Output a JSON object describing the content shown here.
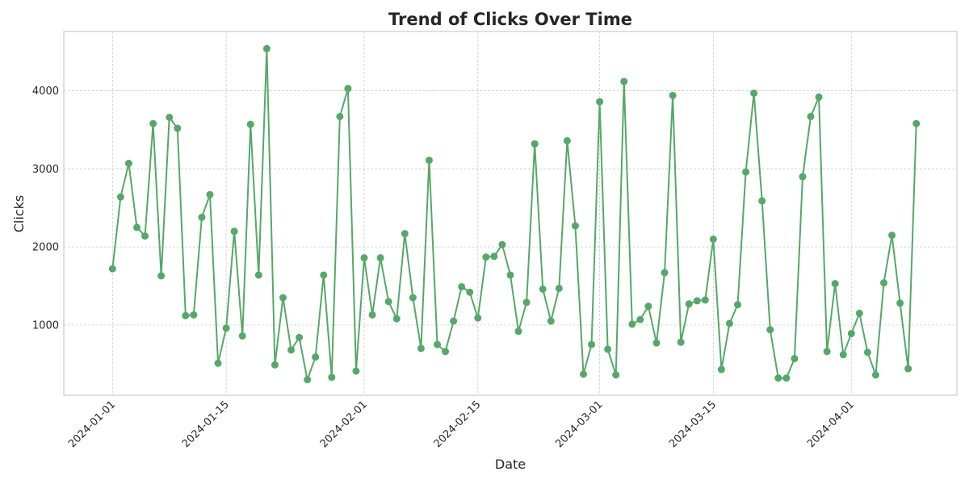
{
  "chart_data": {
    "type": "line",
    "title": "Trend of Clicks Over Time",
    "xlabel": "Date",
    "ylabel": "Clicks",
    "x_start": "2024-01-01",
    "x_end": "2024-04-08",
    "xlim": [
      "2023-12-26",
      "2024-04-14"
    ],
    "ylim": [
      100,
      4760
    ],
    "x_ticks": [
      "2024-01-01",
      "2024-01-15",
      "2024-02-01",
      "2024-02-15",
      "2024-03-01",
      "2024-03-15",
      "2024-04-01"
    ],
    "y_ticks": [
      1000,
      2000,
      3000,
      4000
    ],
    "grid": true,
    "legend": "none",
    "colors": {
      "line": "#55a868",
      "grid": "#cccccc",
      "frame": "#cccccc",
      "text": "#262626"
    },
    "series": [
      {
        "values": [
          1720,
          2640,
          3070,
          2250,
          2140,
          3580,
          1630,
          3660,
          3520,
          1120,
          1130,
          2380,
          2670,
          510,
          960,
          2200,
          860,
          3570,
          1640,
          4540,
          490,
          1350,
          680,
          840,
          300,
          590,
          1640,
          330,
          3670,
          4030,
          410,
          1860,
          1130,
          1860,
          1300,
          1080,
          2170,
          1350,
          700,
          3110,
          750,
          660,
          1050,
          1490,
          1420,
          1090,
          1870,
          1880,
          2030,
          1640,
          920,
          1290,
          3320,
          1460,
          1050,
          1470,
          3360,
          2270,
          370,
          750,
          3860,
          690,
          360,
          4120,
          1010,
          1070,
          1240,
          770,
          1670,
          3940,
          780,
          1270,
          1310,
          1320,
          2100,
          430,
          1020,
          1260,
          2960,
          3970,
          2590,
          940,
          320,
          320,
          570,
          2900,
          3670,
          3920,
          660,
          1530,
          620,
          890,
          1150,
          650,
          360,
          1540,
          2150,
          1280,
          440,
          3580
        ]
      }
    ]
  }
}
